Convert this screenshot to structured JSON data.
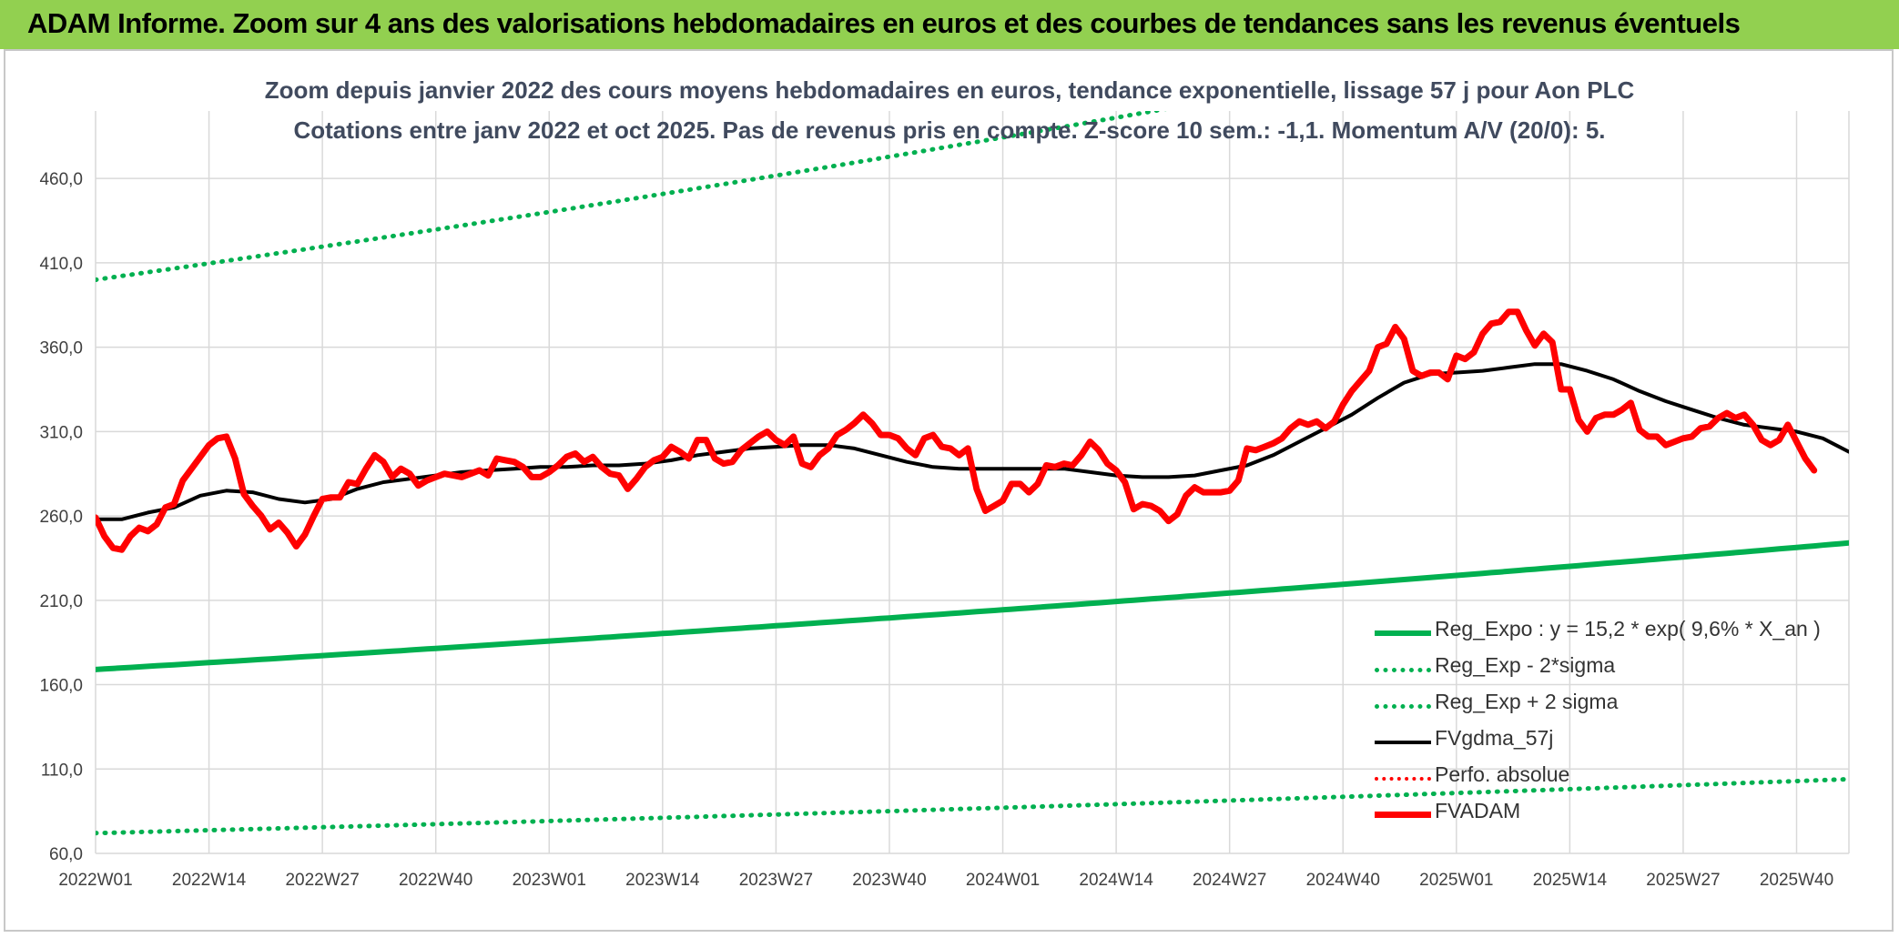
{
  "header": {
    "banner_title": "ADAM Informe. Zoom sur 4 ans des valorisations hebdomadaires en euros et des courbes de tendances sans les revenus éventuels"
  },
  "colors": {
    "banner": "#92d050",
    "trend": "#00b050",
    "price": "#ff0000",
    "smooth": "#000000",
    "title_text": "#404a5e"
  },
  "chart_data": {
    "type": "line",
    "title": "Zoom depuis janvier 2022 des cours moyens hebdomadaires en euros, tendance exponentielle, lissage 57 j pour Aon PLC",
    "subtitle": "Cotations entre janv 2022 et oct 2025. Pas de revenus pris en compte. Z-score 10 sem.: -1,1. Momentum A/V (20/0): 5.",
    "ylim": [
      60,
      500
    ],
    "y_ticks": [
      "60,0",
      "110,0",
      "160,0",
      "210,0",
      "260,0",
      "310,0",
      "360,0",
      "410,0",
      "460,0"
    ],
    "x_ticks": [
      "2022W01",
      "2022W14",
      "2022W27",
      "2022W40",
      "2023W01",
      "2023W14",
      "2023W27",
      "2023W40",
      "2024W01",
      "2024W14",
      "2024W27",
      "2024W40",
      "2025W01",
      "2025W14",
      "2025W27",
      "2025W40"
    ],
    "x_range_weeks": [
      0,
      201
    ],
    "grid": true,
    "legend_position": "bottom-right",
    "series": [
      {
        "name": "Reg_Expo : y = 15,2 * exp( 9,6% *  X_an )",
        "style": "solid",
        "color": "#00b050",
        "points": [
          [
            0,
            169
          ],
          [
            201,
            244
          ]
        ]
      },
      {
        "name": "Reg_Exp - 2*sigma",
        "style": "dotted",
        "color": "#00b050",
        "points": [
          [
            0,
            72
          ],
          [
            201,
            104
          ]
        ]
      },
      {
        "name": "Reg_Exp + 2 sigma",
        "style": "dotted",
        "color": "#00b050",
        "points": [
          [
            0,
            400
          ],
          [
            201,
            579
          ]
        ]
      },
      {
        "name": "FVgdma_57j",
        "style": "solid",
        "color": "#000000",
        "points": [
          [
            0,
            258
          ],
          [
            3,
            258
          ],
          [
            6,
            262
          ],
          [
            9,
            265
          ],
          [
            12,
            272
          ],
          [
            15,
            275
          ],
          [
            18,
            274
          ],
          [
            21,
            270
          ],
          [
            24,
            268
          ],
          [
            27,
            270
          ],
          [
            30,
            276
          ],
          [
            33,
            280
          ],
          [
            36,
            282
          ],
          [
            39,
            284
          ],
          [
            42,
            286
          ],
          [
            45,
            287
          ],
          [
            48,
            288
          ],
          [
            51,
            289
          ],
          [
            54,
            289
          ],
          [
            57,
            290
          ],
          [
            60,
            290
          ],
          [
            63,
            291
          ],
          [
            66,
            293
          ],
          [
            69,
            296
          ],
          [
            72,
            298
          ],
          [
            75,
            300
          ],
          [
            78,
            301
          ],
          [
            81,
            302
          ],
          [
            84,
            302
          ],
          [
            87,
            300
          ],
          [
            90,
            296
          ],
          [
            93,
            292
          ],
          [
            96,
            289
          ],
          [
            99,
            288
          ],
          [
            102,
            288
          ],
          [
            105,
            288
          ],
          [
            108,
            288
          ],
          [
            111,
            288
          ],
          [
            114,
            286
          ],
          [
            117,
            284
          ],
          [
            120,
            283
          ],
          [
            123,
            283
          ],
          [
            126,
            284
          ],
          [
            129,
            287
          ],
          [
            132,
            290
          ],
          [
            135,
            296
          ],
          [
            138,
            304
          ],
          [
            141,
            312
          ],
          [
            144,
            320
          ],
          [
            147,
            330
          ],
          [
            150,
            339
          ],
          [
            153,
            344
          ],
          [
            156,
            345
          ],
          [
            159,
            346
          ],
          [
            162,
            348
          ],
          [
            165,
            350
          ],
          [
            168,
            350
          ],
          [
            171,
            346
          ],
          [
            174,
            341
          ],
          [
            177,
            334
          ],
          [
            180,
            328
          ],
          [
            183,
            323
          ],
          [
            186,
            318
          ],
          [
            189,
            314
          ],
          [
            192,
            312
          ],
          [
            195,
            310
          ],
          [
            198,
            306
          ],
          [
            201,
            298
          ]
        ]
      },
      {
        "name": "Perfo. absolue",
        "style": "dotted",
        "color": "#ff0000",
        "points": []
      },
      {
        "name": "FVADAM",
        "style": "solid",
        "color": "#ff0000",
        "points": [
          [
            0,
            259
          ],
          [
            1,
            248
          ],
          [
            2,
            241
          ],
          [
            3,
            240
          ],
          [
            4,
            248
          ],
          [
            5,
            253
          ],
          [
            6,
            251
          ],
          [
            7,
            255
          ],
          [
            8,
            265
          ],
          [
            9,
            267
          ],
          [
            10,
            281
          ],
          [
            11,
            288
          ],
          [
            12,
            295
          ],
          [
            13,
            302
          ],
          [
            14,
            306
          ],
          [
            15,
            307
          ],
          [
            16,
            294
          ],
          [
            17,
            273
          ],
          [
            18,
            266
          ],
          [
            19,
            260
          ],
          [
            20,
            252
          ],
          [
            21,
            256
          ],
          [
            22,
            250
          ],
          [
            23,
            242
          ],
          [
            24,
            249
          ],
          [
            25,
            260
          ],
          [
            26,
            270
          ],
          [
            27,
            271
          ],
          [
            28,
            271
          ],
          [
            29,
            280
          ],
          [
            30,
            279
          ],
          [
            31,
            288
          ],
          [
            32,
            296
          ],
          [
            33,
            292
          ],
          [
            34,
            283
          ],
          [
            35,
            288
          ],
          [
            36,
            285
          ],
          [
            37,
            278
          ],
          [
            38,
            281
          ],
          [
            39,
            283
          ],
          [
            40,
            285
          ],
          [
            41,
            284
          ],
          [
            42,
            283
          ],
          [
            43,
            285
          ],
          [
            44,
            287
          ],
          [
            45,
            284
          ],
          [
            46,
            294
          ],
          [
            47,
            293
          ],
          [
            48,
            292
          ],
          [
            49,
            289
          ],
          [
            50,
            283
          ],
          [
            51,
            283
          ],
          [
            52,
            286
          ],
          [
            53,
            290
          ],
          [
            54,
            295
          ],
          [
            55,
            297
          ],
          [
            56,
            292
          ],
          [
            57,
            295
          ],
          [
            58,
            289
          ],
          [
            59,
            285
          ],
          [
            60,
            284
          ],
          [
            61,
            276
          ],
          [
            62,
            282
          ],
          [
            63,
            289
          ],
          [
            64,
            293
          ],
          [
            65,
            295
          ],
          [
            66,
            301
          ],
          [
            67,
            298
          ],
          [
            68,
            294
          ],
          [
            69,
            305
          ],
          [
            70,
            305
          ],
          [
            71,
            294
          ],
          [
            72,
            291
          ],
          [
            73,
            292
          ],
          [
            74,
            299
          ],
          [
            75,
            303
          ],
          [
            76,
            307
          ],
          [
            77,
            310
          ],
          [
            78,
            305
          ],
          [
            79,
            302
          ],
          [
            80,
            307
          ],
          [
            81,
            291
          ],
          [
            82,
            289
          ],
          [
            83,
            296
          ],
          [
            84,
            300
          ],
          [
            85,
            308
          ],
          [
            86,
            311
          ],
          [
            87,
            315
          ],
          [
            88,
            320
          ],
          [
            89,
            315
          ],
          [
            90,
            308
          ],
          [
            91,
            308
          ],
          [
            92,
            306
          ],
          [
            93,
            300
          ],
          [
            94,
            296
          ],
          [
            95,
            306
          ],
          [
            96,
            308
          ],
          [
            97,
            301
          ],
          [
            98,
            300
          ],
          [
            99,
            296
          ],
          [
            100,
            300
          ],
          [
            101,
            276
          ],
          [
            102,
            263
          ],
          [
            103,
            266
          ],
          [
            104,
            269
          ],
          [
            105,
            279
          ],
          [
            106,
            279
          ],
          [
            107,
            274
          ],
          [
            108,
            279
          ],
          [
            109,
            290
          ],
          [
            110,
            289
          ],
          [
            111,
            291
          ],
          [
            112,
            290
          ],
          [
            113,
            296
          ],
          [
            114,
            304
          ],
          [
            115,
            299
          ],
          [
            116,
            291
          ],
          [
            117,
            287
          ],
          [
            118,
            280
          ],
          [
            119,
            264
          ],
          [
            120,
            267
          ],
          [
            121,
            266
          ],
          [
            122,
            263
          ],
          [
            123,
            257
          ],
          [
            124,
            261
          ],
          [
            125,
            272
          ],
          [
            126,
            277
          ],
          [
            127,
            274
          ],
          [
            128,
            274
          ],
          [
            129,
            274
          ],
          [
            130,
            275
          ],
          [
            131,
            281
          ],
          [
            132,
            300
          ],
          [
            133,
            299
          ],
          [
            134,
            301
          ],
          [
            135,
            303
          ],
          [
            136,
            306
          ],
          [
            137,
            312
          ],
          [
            138,
            316
          ],
          [
            139,
            314
          ],
          [
            140,
            316
          ],
          [
            141,
            312
          ],
          [
            142,
            316
          ],
          [
            143,
            326
          ],
          [
            144,
            334
          ],
          [
            145,
            340
          ],
          [
            146,
            346
          ],
          [
            147,
            360
          ],
          [
            148,
            362
          ],
          [
            149,
            372
          ],
          [
            150,
            365
          ],
          [
            151,
            346
          ],
          [
            152,
            343
          ],
          [
            153,
            345
          ],
          [
            154,
            345
          ],
          [
            155,
            341
          ],
          [
            156,
            355
          ],
          [
            157,
            353
          ],
          [
            158,
            357
          ],
          [
            159,
            368
          ],
          [
            160,
            374
          ],
          [
            161,
            375
          ],
          [
            162,
            381
          ],
          [
            163,
            381
          ],
          [
            164,
            370
          ],
          [
            165,
            361
          ],
          [
            166,
            368
          ],
          [
            167,
            363
          ],
          [
            168,
            335
          ],
          [
            169,
            335
          ],
          [
            170,
            317
          ],
          [
            171,
            310
          ],
          [
            172,
            318
          ],
          [
            173,
            320
          ],
          [
            174,
            320
          ],
          [
            175,
            323
          ],
          [
            176,
            327
          ],
          [
            177,
            311
          ],
          [
            178,
            307
          ],
          [
            179,
            307
          ],
          [
            180,
            302
          ],
          [
            181,
            304
          ],
          [
            182,
            306
          ],
          [
            183,
            307
          ],
          [
            184,
            312
          ],
          [
            185,
            313
          ],
          [
            186,
            318
          ],
          [
            187,
            321
          ],
          [
            188,
            318
          ],
          [
            189,
            320
          ],
          [
            190,
            314
          ],
          [
            191,
            305
          ],
          [
            192,
            302
          ],
          [
            193,
            305
          ],
          [
            194,
            314
          ],
          [
            195,
            304
          ],
          [
            196,
            294
          ],
          [
            197,
            287
          ]
        ]
      }
    ]
  }
}
